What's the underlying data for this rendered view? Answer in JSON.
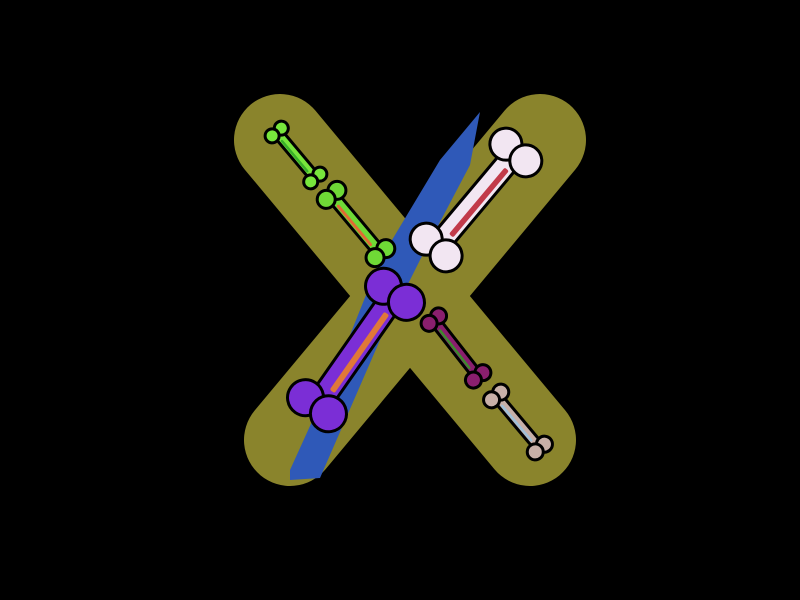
{
  "canvas": {
    "background": "#000000"
  },
  "illustration": {
    "subject": "letter-x-with-bones",
    "colors": {
      "x_fill": "#8a842c",
      "stripe": "#2f59b8",
      "outline": "#000000"
    },
    "bones": [
      {
        "name": "bone-green-small",
        "fill": "#78e63c",
        "accent": "#3ab02a"
      },
      {
        "name": "bone-green-medium",
        "fill": "#6fd936",
        "accent": "#e06a34"
      },
      {
        "name": "bone-white-large",
        "fill": "#f2e6f2",
        "accent": "#c23a4a"
      },
      {
        "name": "bone-purple-large",
        "fill": "#7b2ed6",
        "accent": "#e07838"
      },
      {
        "name": "bone-magenta-small",
        "fill": "#8a1f6e",
        "accent": "#3e8a2e"
      },
      {
        "name": "bone-beige-small",
        "fill": "#c8b0a8",
        "accent": "#a0c0d8"
      }
    ]
  }
}
